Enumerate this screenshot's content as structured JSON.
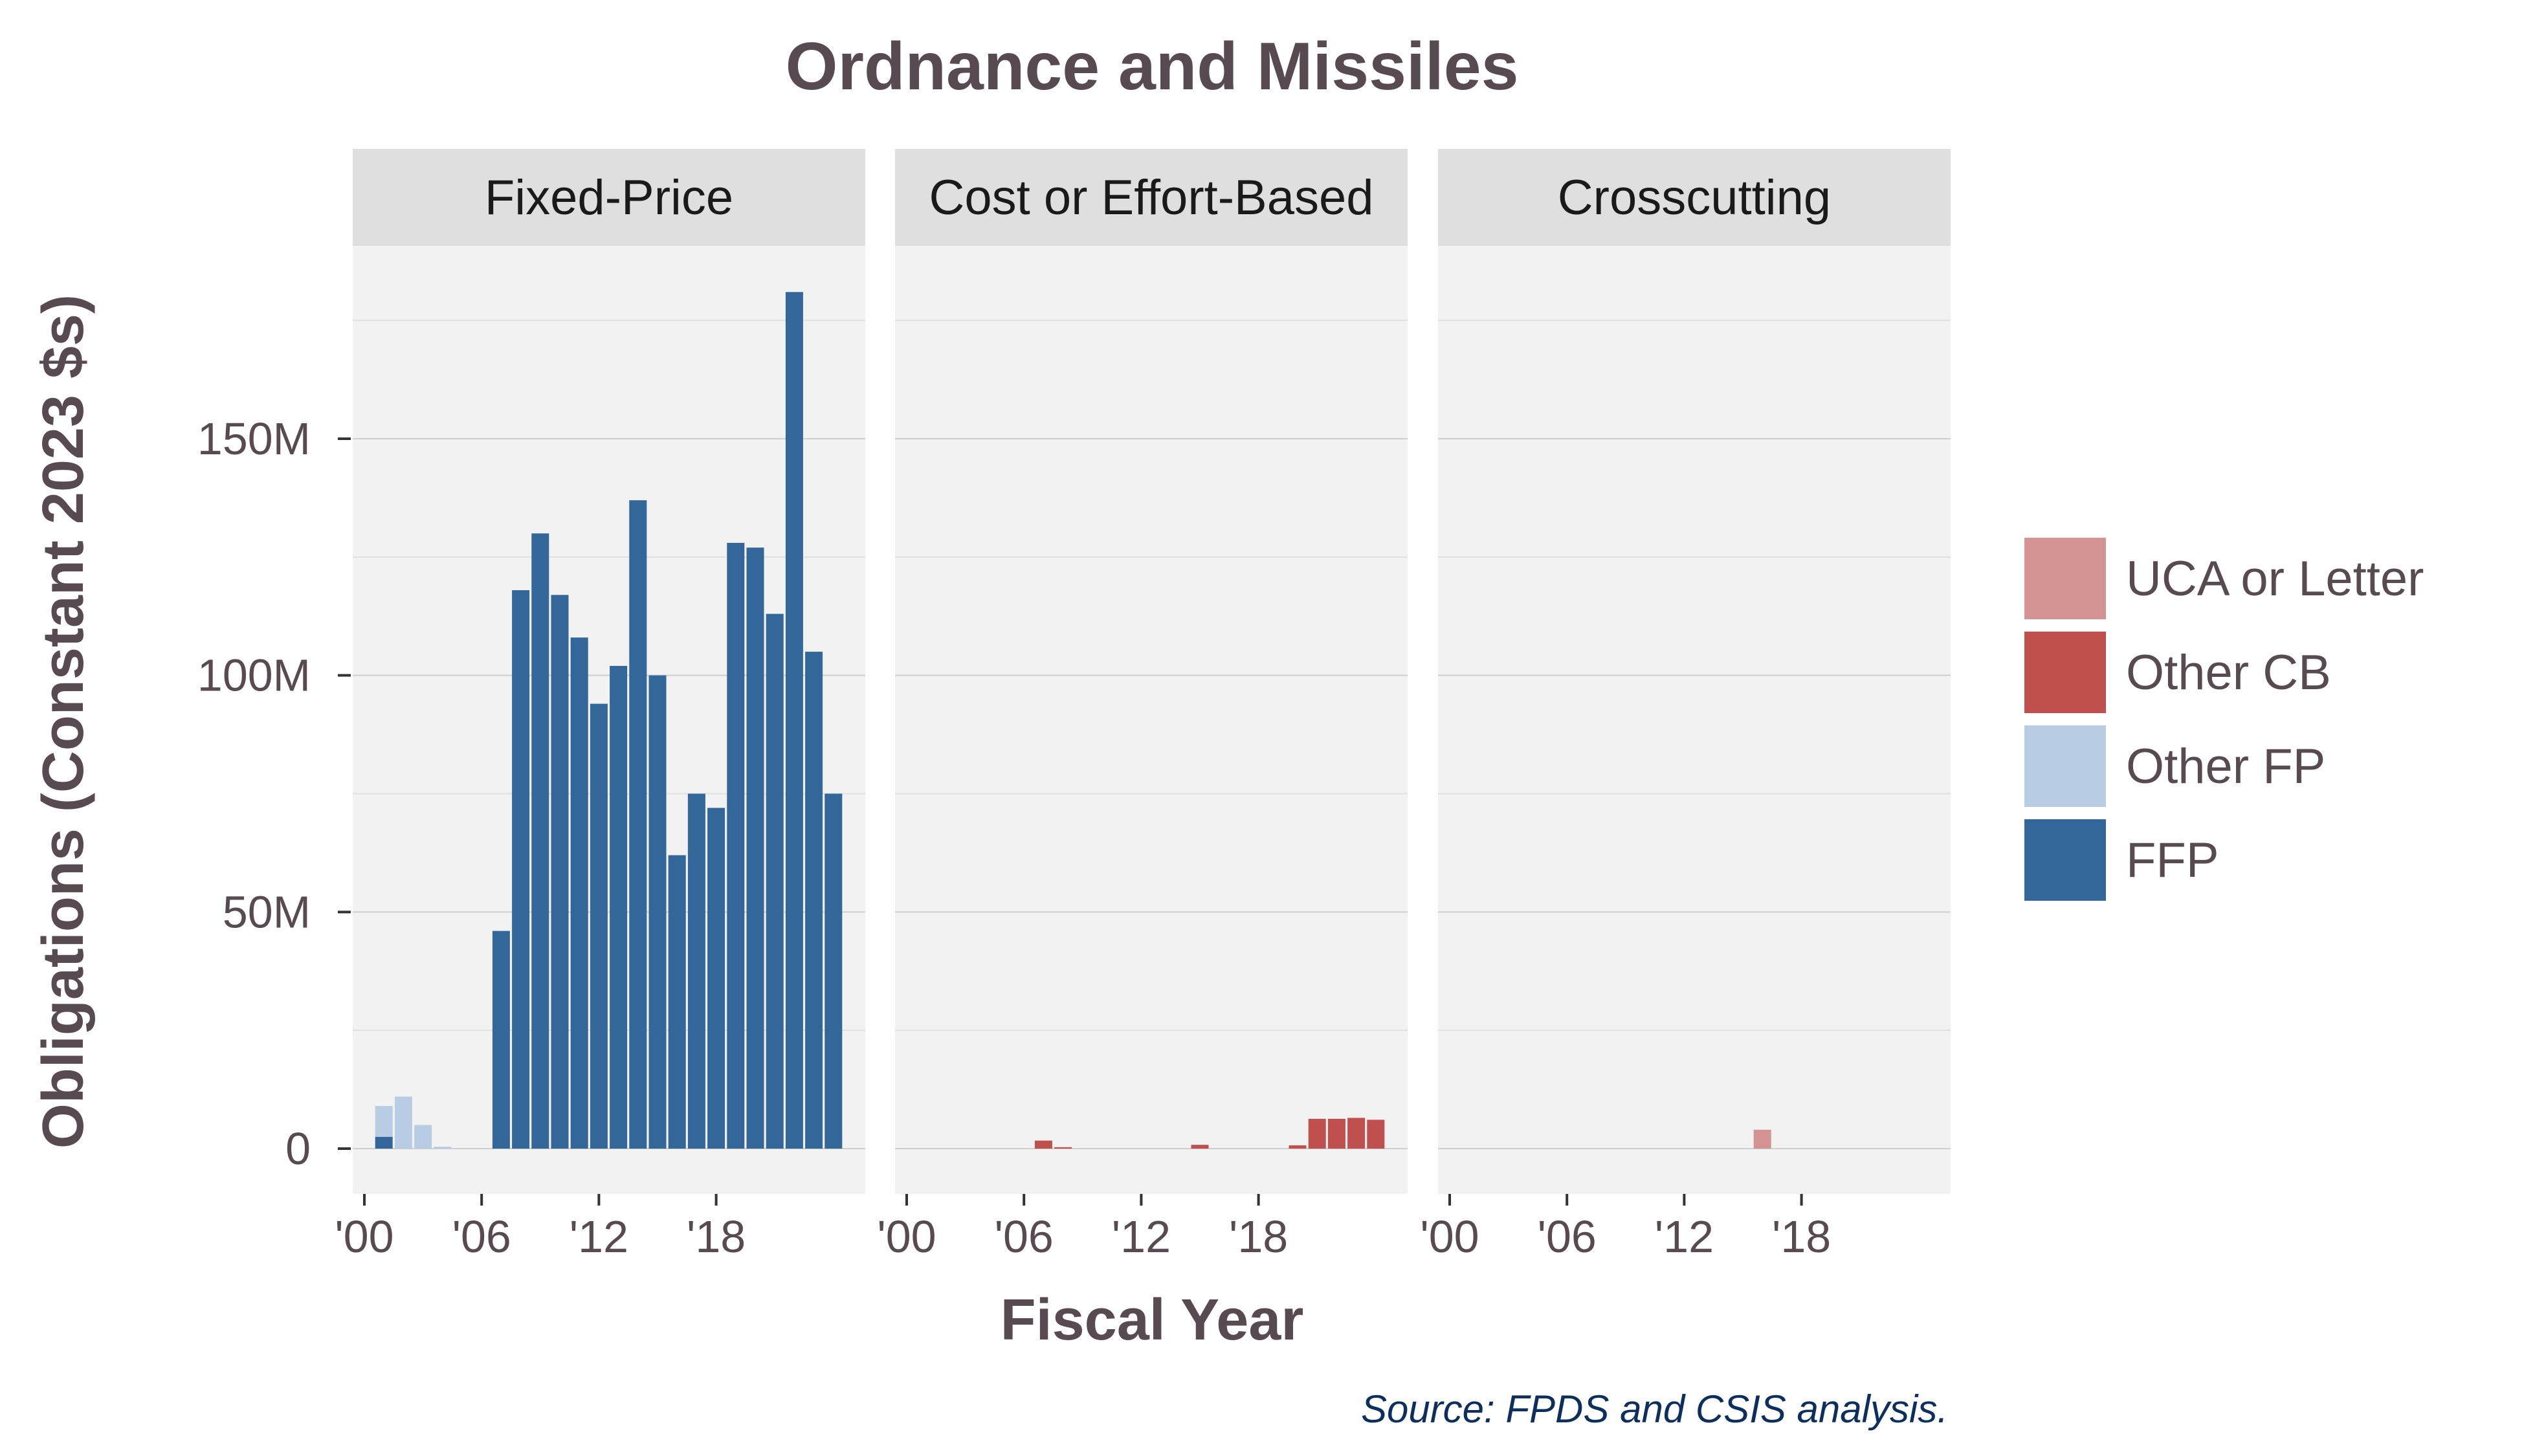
{
  "chart_data": {
    "type": "bar",
    "stacked": true,
    "title": "Ordnance and Missiles",
    "xlabel": "Fiscal Year",
    "ylabel": "Obligations (Constant 2023 $s)",
    "source": "Source: FPDS and CSIS analysis.",
    "ylim": [
      0,
      180000000
    ],
    "xlim": [
      2000,
      2024
    ],
    "yticks": [
      {
        "value": 0,
        "label": "0"
      },
      {
        "value": 50000000,
        "label": "50M"
      },
      {
        "value": 100000000,
        "label": "100M"
      },
      {
        "value": 150000000,
        "label": "150M"
      }
    ],
    "xticks": [
      {
        "value": 2000,
        "label": "'00"
      },
      {
        "value": 2006,
        "label": "'06"
      },
      {
        "value": 2012,
        "label": "'12"
      },
      {
        "value": 2018,
        "label": "'18"
      }
    ],
    "grid": true,
    "legend_position": "right",
    "legend": [
      {
        "name": "UCA or Letter",
        "color": "#d49393"
      },
      {
        "name": "Other CB",
        "color": "#c0504d"
      },
      {
        "name": "Other FP",
        "color": "#b8cce4"
      },
      {
        "name": "FFP",
        "color": "#336699"
      }
    ],
    "panels": [
      {
        "name": "Fixed-Price",
        "series": [
          {
            "name": "FFP",
            "color": "#336699",
            "points": [
              [
                2001,
                2500000
              ],
              [
                2007,
                46000000
              ],
              [
                2008,
                118000000
              ],
              [
                2009,
                130000000
              ],
              [
                2010,
                117000000
              ],
              [
                2011,
                108000000
              ],
              [
                2012,
                94000000
              ],
              [
                2013,
                102000000
              ],
              [
                2014,
                137000000
              ],
              [
                2015,
                100000000
              ],
              [
                2016,
                62000000
              ],
              [
                2017,
                75000000
              ],
              [
                2018,
                72000000
              ],
              [
                2019,
                128000000
              ],
              [
                2020,
                127000000
              ],
              [
                2021,
                113000000
              ],
              [
                2022,
                181000000
              ],
              [
                2023,
                105000000
              ],
              [
                2024,
                75000000
              ]
            ]
          },
          {
            "name": "Other FP",
            "color": "#b8cce4",
            "points": [
              [
                2001,
                6500000
              ],
              [
                2002,
                11000000
              ],
              [
                2003,
                5000000
              ],
              [
                2004,
                400000
              ]
            ]
          }
        ]
      },
      {
        "name": "Cost or Effort-Based",
        "series": [
          {
            "name": "Other CB",
            "color": "#c0504d",
            "points": [
              [
                2007,
                1700000
              ],
              [
                2008,
                300000
              ],
              [
                2015,
                800000
              ],
              [
                2020,
                700000
              ],
              [
                2021,
                6300000
              ],
              [
                2022,
                6300000
              ],
              [
                2023,
                6500000
              ],
              [
                2024,
                6100000
              ]
            ]
          }
        ]
      },
      {
        "name": "Crosscutting",
        "series": [
          {
            "name": "UCA or Letter",
            "color": "#d49393",
            "points": [
              [
                2016,
                4000000
              ]
            ]
          }
        ]
      }
    ]
  }
}
